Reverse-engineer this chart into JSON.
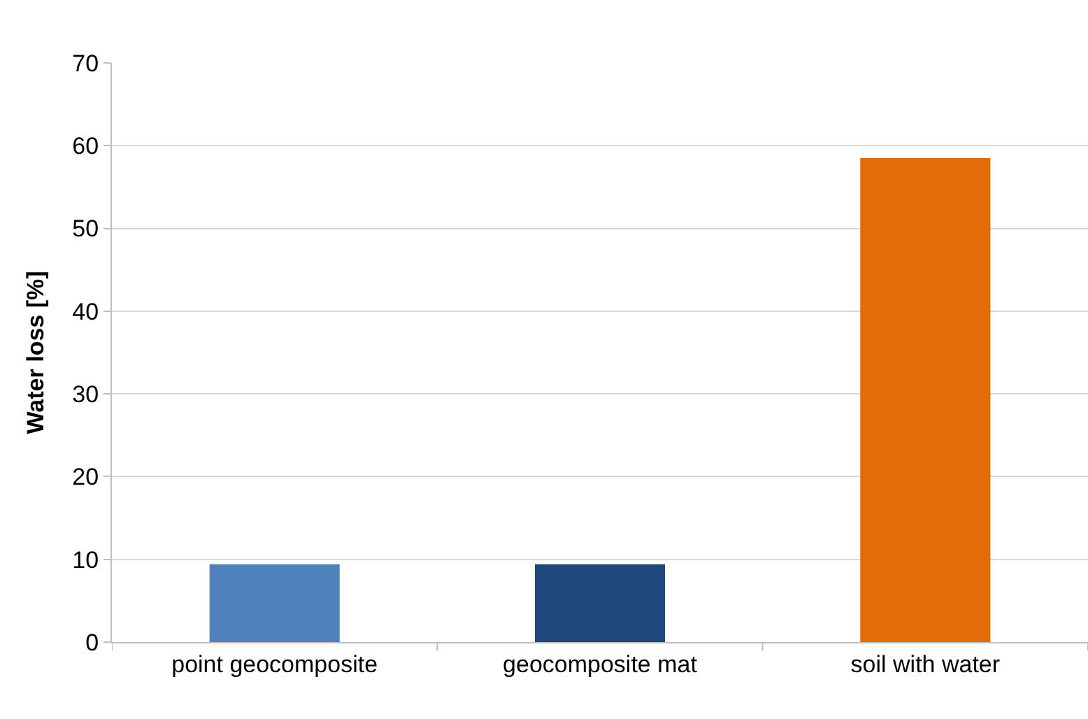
{
  "chart_data": {
    "type": "bar",
    "ylabel": "Water loss [%]",
    "categories": [
      "point geocomposite",
      "geocomposite mat",
      "soil with water"
    ],
    "values": [
      9.4,
      9.4,
      58.5
    ],
    "colors": [
      "#4f81bd",
      "#1f497d",
      "#e36c0a"
    ],
    "ylim": [
      0,
      70
    ],
    "yticks": [
      0,
      10,
      20,
      30,
      40,
      50,
      60,
      70
    ],
    "grid": "y"
  }
}
